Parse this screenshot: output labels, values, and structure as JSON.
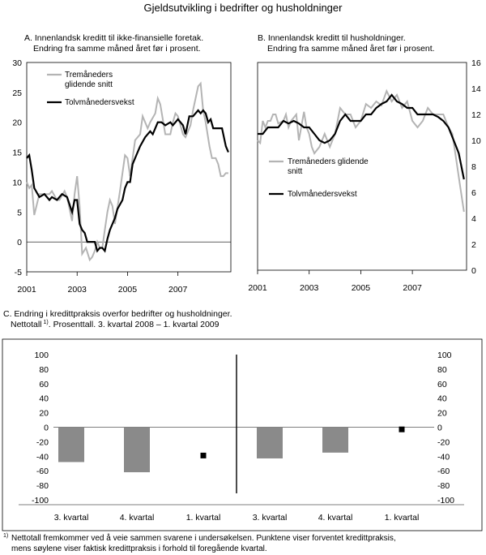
{
  "page": {
    "title": "Gjeldsutvikling i bedrifter og husholdninger",
    "footnote": {
      "marker": "1)",
      "line1": "Nettotall fremkommer ved å veie sammen svarene i undersøkelsen. Punktene viser forventet kredittpraksis,",
      "line2": "mens søylene viser faktisk kredittpraksis i forhold til foregående kvartal."
    }
  },
  "chart_data": [
    {
      "id": "A",
      "type": "line",
      "title_line1": "A. Innenlandsk kreditt til ikke-finansielle foretak.",
      "title_line2": "Endring fra samme måned året før i prosent.",
      "xlim": [
        2001,
        2009.1
      ],
      "ylim": [
        -5,
        30
      ],
      "y_ticks": [
        "30",
        "25",
        "20",
        "15",
        "10",
        "5",
        "0",
        "-5"
      ],
      "y_tick_values": [
        30,
        25,
        20,
        15,
        10,
        5,
        0,
        -5
      ],
      "x_ticks": [
        "2001",
        "2003",
        "2005",
        "2007"
      ],
      "x_tick_values": [
        2001,
        2003,
        2005,
        2007
      ],
      "zero_line": true,
      "legend_placement": "top-left",
      "series": [
        {
          "name_line1": "Tremåneders",
          "name_line2": "glidende snitt",
          "color": "#b4b4b4",
          "x": [
            2001.0,
            2001.1,
            2001.2,
            2001.3,
            2001.5,
            2001.6,
            2001.8,
            2001.9,
            2002.0,
            2002.2,
            2002.3,
            2002.5,
            2002.6,
            2002.8,
            2002.9,
            2003.0,
            2003.1,
            2003.2,
            2003.35,
            2003.5,
            2003.6,
            2003.7,
            2003.8,
            2003.9,
            2004.0,
            2004.1,
            2004.2,
            2004.3,
            2004.4,
            2004.5,
            2004.7,
            2004.9,
            2005.0,
            2005.1,
            2005.2,
            2005.3,
            2005.5,
            2005.6,
            2005.8,
            2005.9,
            2006.1,
            2006.2,
            2006.3,
            2006.5,
            2006.7,
            2006.8,
            2006.9,
            2007.0,
            2007.2,
            2007.3,
            2007.5,
            2007.6,
            2007.8,
            2007.9,
            2008.0,
            2008.1,
            2008.25,
            2008.35,
            2008.5,
            2008.6,
            2008.7,
            2008.8,
            2008.9,
            2009.0
          ],
          "y": [
            10,
            9,
            9.5,
            4.5,
            8,
            8,
            8,
            8,
            8.5,
            7,
            7,
            8.5,
            7.5,
            3.5,
            8,
            11,
            6,
            -2,
            -1,
            -3,
            -2.5,
            -1.5,
            0,
            -1,
            -1,
            2,
            5,
            7,
            6,
            3,
            8.5,
            14.5,
            14,
            11,
            14,
            17,
            18,
            21,
            19,
            20,
            21.5,
            24,
            23,
            18,
            18,
            20,
            21.5,
            21,
            18,
            17.5,
            19.5,
            22,
            26,
            26.5,
            22,
            20,
            16,
            14,
            14,
            13,
            11,
            11,
            11.5,
            11.5
          ],
          "_note": ""
        },
        {
          "name": "Tolvmånedersvekst",
          "color": "#000000",
          "x": [
            2001.0,
            2001.1,
            2001.2,
            2001.3,
            2001.5,
            2001.7,
            2001.9,
            2002.0,
            2002.2,
            2002.4,
            2002.6,
            2002.8,
            2002.9,
            2003.0,
            2003.1,
            2003.2,
            2003.3,
            2003.4,
            2003.6,
            2003.7,
            2003.8,
            2003.9,
            2004.0,
            2004.1,
            2004.2,
            2004.3,
            2004.4,
            2004.5,
            2004.6,
            2004.8,
            2004.9,
            2005.0,
            2005.1,
            2005.2,
            2005.35,
            2005.5,
            2005.7,
            2005.9,
            2006.0,
            2006.2,
            2006.35,
            2006.5,
            2006.7,
            2006.8,
            2006.9,
            2007.0,
            2007.2,
            2007.3,
            2007.45,
            2007.6,
            2007.8,
            2007.9,
            2008.0,
            2008.1,
            2008.2,
            2008.3,
            2008.4,
            2008.5,
            2008.6,
            2008.75,
            2008.9,
            2009.0
          ],
          "y": [
            14,
            14.5,
            12,
            9,
            7.5,
            8,
            7,
            7.5,
            7,
            8,
            7.5,
            5,
            7,
            7,
            3,
            2,
            1.5,
            0,
            0,
            0,
            -1.5,
            -1,
            -1,
            -1.5,
            0.5,
            2,
            3,
            4,
            5.5,
            7,
            9,
            10,
            10,
            13,
            14.5,
            16,
            17.5,
            18.5,
            18,
            20,
            20,
            19.5,
            20,
            19.5,
            20,
            20.5,
            19.5,
            18,
            21,
            21,
            22,
            21.5,
            22,
            21.5,
            20,
            20.5,
            19,
            19,
            19,
            19,
            16,
            15
          ]
        }
      ]
    },
    {
      "id": "B",
      "type": "line",
      "title_line1": "B. Innenlandsk kreditt til husholdninger.",
      "title_line2": "Endring fra samme måned året før i prosent.",
      "xlim": [
        2001,
        2009.1
      ],
      "ylim": [
        0,
        16
      ],
      "y_ticks": [
        "16",
        "14",
        "12",
        "10",
        "8",
        "6",
        "4",
        "2",
        "0"
      ],
      "y_tick_values": [
        16,
        14,
        12,
        10,
        8,
        6,
        4,
        2,
        0
      ],
      "x_ticks": [
        "2001",
        "2003",
        "2005",
        "2007"
      ],
      "x_tick_values": [
        2001,
        2003,
        2005,
        2007
      ],
      "legend_placement": "middle-left",
      "series": [
        {
          "name_line1": "Tremåneders glidende",
          "name_line2": "snitt",
          "color": "#b4b4b4",
          "x": [
            2001.0,
            2001.1,
            2001.2,
            2001.3,
            2001.4,
            2001.5,
            2001.6,
            2001.7,
            2001.8,
            2002.0,
            2002.1,
            2002.2,
            2002.3,
            2002.5,
            2002.6,
            2002.8,
            2002.9,
            2003.0,
            2003.1,
            2003.2,
            2003.4,
            2003.6,
            2003.7,
            2003.8,
            2004.0,
            2004.2,
            2004.4,
            2004.6,
            2004.8,
            2005.0,
            2005.2,
            2005.4,
            2005.6,
            2005.8,
            2006.0,
            2006.2,
            2006.4,
            2006.6,
            2006.8,
            2007.0,
            2007.2,
            2007.4,
            2007.6,
            2007.8,
            2008.0,
            2008.2,
            2008.4,
            2008.55,
            2008.7,
            2008.85,
            2009.0
          ],
          "y": [
            10,
            9.8,
            11.5,
            11,
            11.5,
            11.5,
            12,
            12,
            11.3,
            11.5,
            12,
            11,
            11.5,
            12,
            10,
            12.2,
            11,
            10.5,
            9.5,
            9,
            9.5,
            10.5,
            10,
            9.5,
            10.5,
            12.5,
            12,
            12,
            11,
            11.5,
            12.8,
            12.5,
            13,
            12.7,
            13.8,
            13,
            13.5,
            12.5,
            13,
            11.5,
            11,
            11.5,
            12.5,
            12,
            12,
            12,
            11,
            10.5,
            8.5,
            6.5,
            4.5
          ]
        },
        {
          "name": "Tolvmånedersvekst",
          "color": "#000000",
          "x": [
            2001.0,
            2001.2,
            2001.4,
            2001.6,
            2001.8,
            2002.0,
            2002.2,
            2002.4,
            2002.6,
            2002.8,
            2003.0,
            2003.2,
            2003.4,
            2003.6,
            2003.8,
            2004.0,
            2004.2,
            2004.4,
            2004.6,
            2004.8,
            2005.0,
            2005.2,
            2005.4,
            2005.6,
            2005.8,
            2006.0,
            2006.2,
            2006.4,
            2006.6,
            2006.8,
            2007.0,
            2007.2,
            2007.4,
            2007.6,
            2007.8,
            2008.0,
            2008.2,
            2008.4,
            2008.5,
            2008.6,
            2008.7,
            2008.8,
            2008.9,
            2009.0
          ],
          "y": [
            10.5,
            10.5,
            11,
            11,
            11,
            11.5,
            11.3,
            11.5,
            11.3,
            11,
            11,
            10.5,
            10,
            9.8,
            10,
            10.5,
            11.5,
            12,
            11.5,
            11.5,
            11.5,
            12,
            12,
            12.5,
            12.8,
            13,
            13.5,
            13,
            12.8,
            12.5,
            12.5,
            12,
            12,
            12,
            12,
            11.8,
            11.5,
            11,
            10.5,
            10,
            9.5,
            9,
            8,
            7
          ]
        }
      ]
    },
    {
      "id": "C",
      "type": "bar",
      "title_line1": "C. Endring i kredittpraksis overfor bedrifter og husholdninger.",
      "title_line2_pre": "Nettotall",
      "title_line2_sup": "1)",
      "title_line2_post": ". Prosenttall. 3. kvartal 2008 – 1. kvartal 2009",
      "ylim": [
        -100,
        100
      ],
      "y_ticks": [
        "100",
        "80",
        "60",
        "40",
        "20",
        "0",
        "-20",
        "-40",
        "-60",
        "-80",
        "-100"
      ],
      "y_tick_values": [
        100,
        80,
        60,
        40,
        20,
        0,
        -20,
        -40,
        -60,
        -80,
        -100
      ],
      "categories": [
        "3. kvartal",
        "4. kvartal",
        "1. kvartal",
        "3. kvartal",
        "4. kvartal",
        "1. kvartal"
      ],
      "bar_color": "#8a8a8a",
      "marker_color": "#000000",
      "values": [
        -48,
        -62,
        null,
        -43,
        -35,
        null
      ],
      "expected_values": [
        null,
        null,
        -39,
        null,
        null,
        -3
      ]
    }
  ]
}
